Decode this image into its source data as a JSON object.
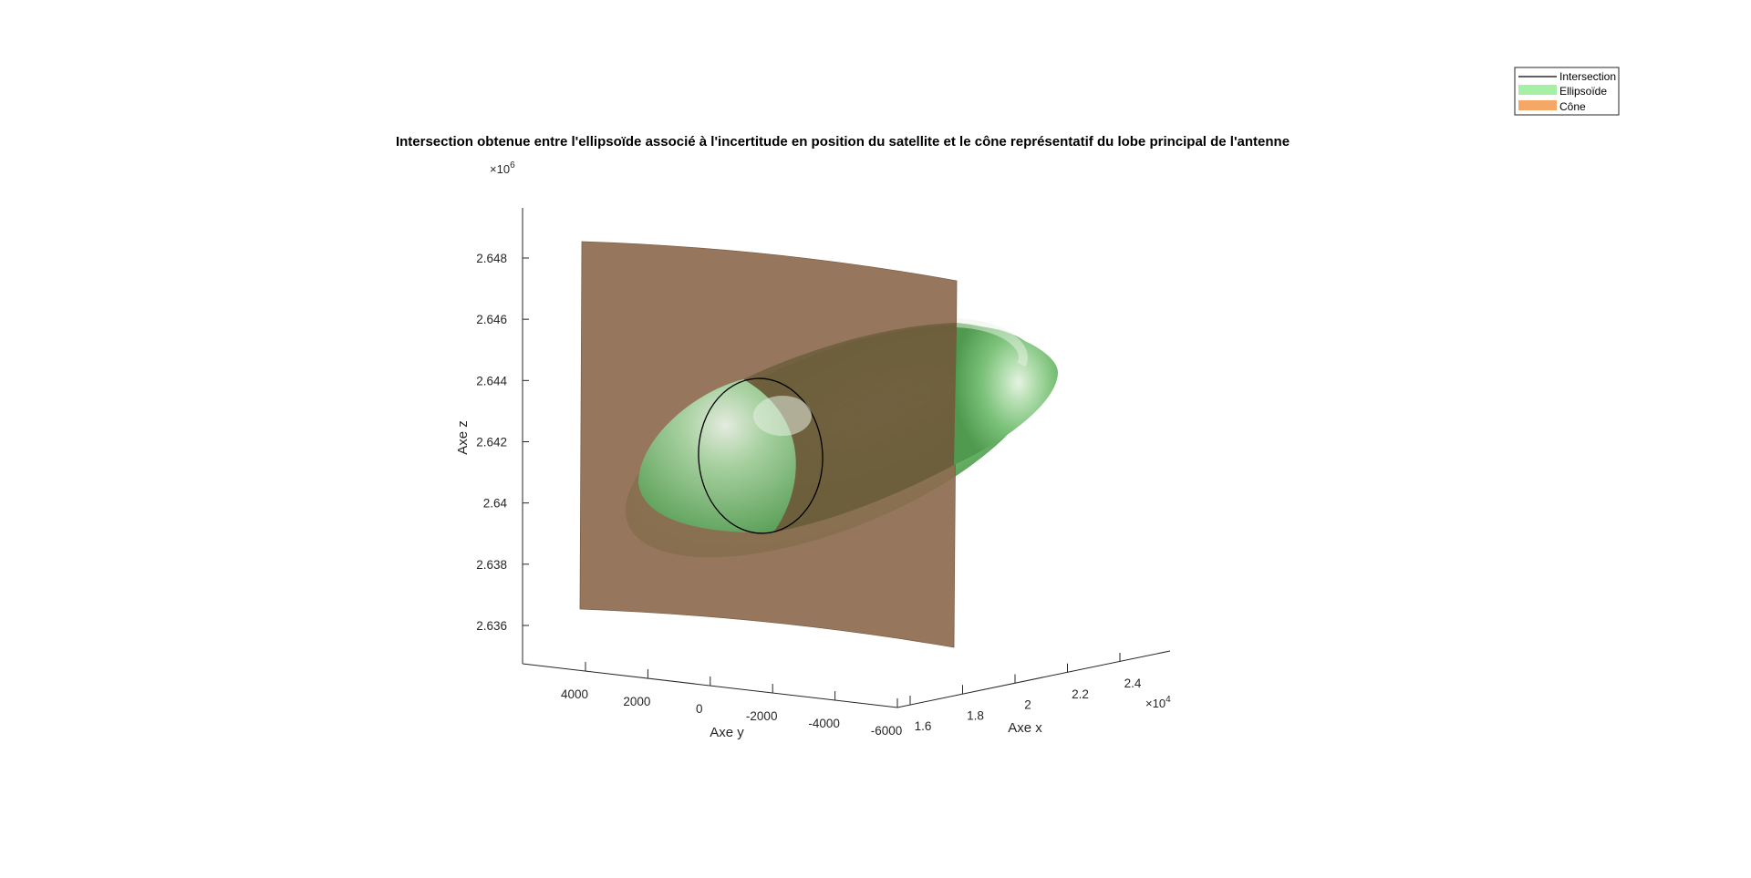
{
  "chart_data": {
    "type": "surface3d",
    "title": "Intersection obtenue entre l'ellipsoïde associé à l'incertitude en position du satellite et le cône représentatif du lobe principal de l'antenne",
    "xlabel": "Axe x",
    "ylabel": "Axe y",
    "zlabel": "Axe z",
    "x_exponent_base": "×10",
    "x_exponent_power": "4",
    "z_exponent_base": "×10",
    "z_exponent_power": "6",
    "x_tick_labels": [
      "1.6",
      "1.8",
      "2",
      "2.2",
      "2.4"
    ],
    "y_tick_labels": [
      "4000",
      "2000",
      "0",
      "-2000",
      "-4000",
      "-6000"
    ],
    "z_tick_labels": [
      "2.648",
      "2.646",
      "2.644",
      "2.642",
      "2.64",
      "2.638",
      "2.636"
    ],
    "x_ticks": [
      1.6,
      1.8,
      2.0,
      2.2,
      2.4
    ],
    "y_ticks": [
      4000,
      2000,
      0,
      -2000,
      -4000,
      -6000
    ],
    "z_ticks": [
      2.648,
      2.646,
      2.644,
      2.642,
      2.64,
      2.638,
      2.636
    ],
    "legend": [
      {
        "label": "Intersection",
        "type": "line",
        "color": "#000000"
      },
      {
        "label": "Ellipsoïde",
        "type": "patch",
        "color": "#a6f0a6"
      },
      {
        "label": "Cône",
        "type": "patch",
        "color": "#f5a865"
      }
    ],
    "legend_position": "top-right",
    "colors": {
      "ellipsoid": "#5aa85a",
      "cone": "#8d6b50",
      "intersection": "#000000"
    },
    "grid": false
  }
}
